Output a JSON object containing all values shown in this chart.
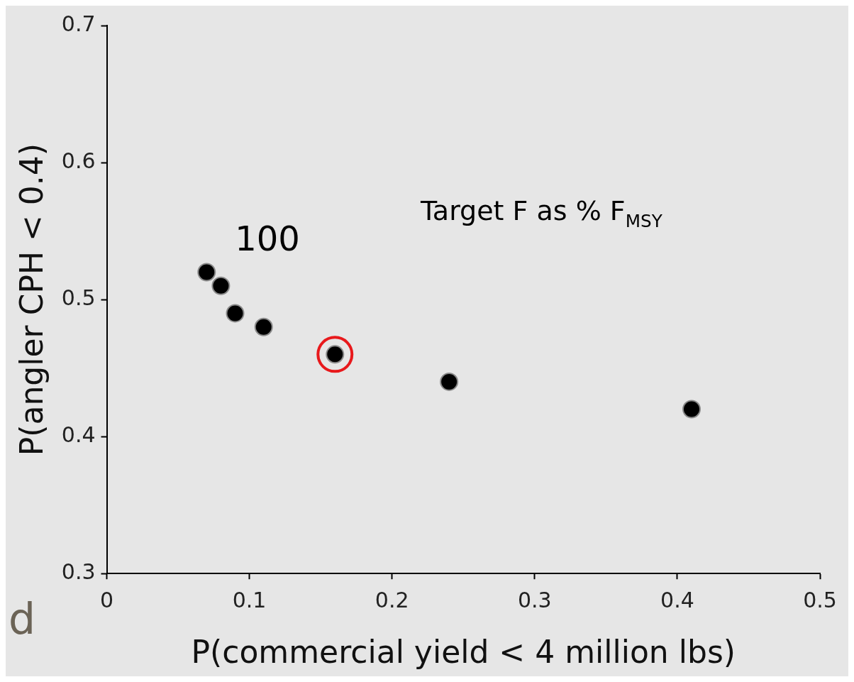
{
  "chart_data": {
    "type": "scatter",
    "xlabel": "P(commercial yield < 4 million lbs)",
    "ylabel": "P(angler CPH < 0.4)",
    "annotations": [
      "Target F as % F$_{MSY}$",
      {
        "text": "100",
        "x": 0.07,
        "y": 0.52
      },
      "d"
    ],
    "series": [
      {
        "color": "#000000",
        "x": [
          0.07,
          0.08,
          0.09,
          0.11,
          0.16,
          0.24,
          0.41
        ],
        "values": [
          0.52,
          0.51,
          0.49,
          0.48,
          0.46,
          0.44,
          0.42
        ],
        "marker": "circle"
      },
      {
        "color": "#e8191c",
        "x": [
          0.16
        ],
        "values": [
          0.46
        ],
        "marker": "circle"
      }
    ],
    "xlim": [
      0,
      0.5
    ],
    "xticks": [
      0,
      0.1,
      0.2,
      0.3,
      0.4,
      0.5
    ],
    "ylim": [
      0.3,
      0.7
    ],
    "yticks": [
      0.3,
      0.4,
      0.5,
      0.6,
      0.7
    ],
    "grid": false,
    "legend": false
  }
}
